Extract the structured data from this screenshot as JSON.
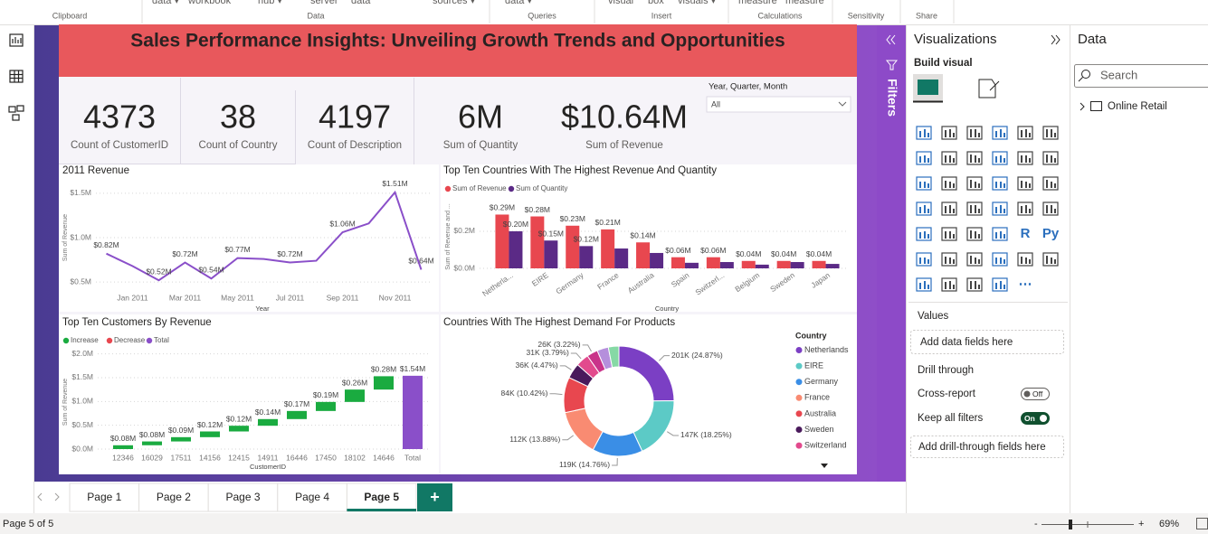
{
  "ribbon": {
    "fragments": [
      "data ▾",
      "workbook",
      "hub ▾",
      "server",
      "data",
      "sources ▾",
      "data ▾",
      "visual",
      "box",
      "visuals ▾",
      "measure",
      "measure"
    ],
    "groups": [
      "Clipboard",
      "Data",
      "Queries",
      "Insert",
      "Calculations",
      "Sensitivity",
      "Share"
    ]
  },
  "report": {
    "title": "Sales Performance Insights: Unveiling Growth Trends and Opportunities",
    "cards": [
      {
        "value": "4373",
        "label": "Count of CustomerID"
      },
      {
        "value": "38",
        "label": "Count of Country"
      },
      {
        "value": "4197",
        "label": "Count of Description"
      },
      {
        "value": "6M",
        "label": "Sum of Quantity"
      },
      {
        "value": "$10.64M",
        "label": "Sum of Revenue"
      }
    ],
    "slicer": {
      "title": "Year, Quarter, Month",
      "value": "All"
    }
  },
  "chart_data": [
    {
      "type": "line",
      "title": "2011 Revenue",
      "x_label": "Year",
      "y_label": "Sum of Revenue",
      "categories": [
        null,
        "Jan 2011",
        null,
        "Mar 2011",
        null,
        "May 2011",
        null,
        "Jul 2011",
        null,
        "Sep 2011",
        null,
        "Nov 2011",
        null
      ],
      "values": [
        0.82,
        0.68,
        0.52,
        0.72,
        0.54,
        0.77,
        0.76,
        0.72,
        0.74,
        1.06,
        1.16,
        1.51,
        0.64
      ],
      "value_labels": [
        "$0.82M",
        null,
        "$0.52M",
        "$0.72M",
        "$0.54M",
        "$0.77M",
        null,
        "$0.72M",
        null,
        "$1.06M",
        null,
        "$1.51M",
        "$0.64M"
      ],
      "color": "#8a4fc9",
      "ylim": [
        0.4,
        1.6
      ],
      "yticks": [
        {
          "value": 0.5,
          "label": "$0.5M"
        },
        {
          "value": 1.0,
          "label": "$1.0M"
        },
        {
          "value": 1.5,
          "label": "$1.5M"
        }
      ],
      "grid": true
    },
    {
      "type": "bar",
      "title": "Top Ten Countries With The Highest Revenue And Quantity",
      "x_label": "Country",
      "y_label": "Sum of Revenue and ...",
      "categories": [
        "Netherla...",
        "EIRE",
        "Germany",
        "France",
        "Australia",
        "Spain",
        "Switzerl...",
        "Belgium",
        "Sweden",
        "Japan"
      ],
      "series": [
        {
          "name": "Sum of Revenue",
          "color": "#e8474f",
          "values": [
            0.29,
            0.28,
            0.23,
            0.21,
            0.14,
            0.06,
            0.06,
            0.04,
            0.04,
            0.04
          ],
          "value_labels": [
            "$0.29M",
            "$0.28M",
            "$0.23M",
            "$0.21M",
            "$0.14M",
            "$0.06M",
            "$0.06M",
            "$0.04M",
            "$0.04M",
            "$0.04M"
          ]
        },
        {
          "name": "Sum of Quantity",
          "color": "#5b2a86",
          "values": [
            0.2,
            0.15,
            0.12,
            0.107,
            0.083,
            0.03,
            0.034,
            0.02,
            0.034,
            0.024
          ],
          "value_labels": [
            "$0.20M",
            "$0.15M",
            "$0.12M",
            null,
            null,
            null,
            null,
            null,
            null,
            null
          ]
        }
      ],
      "ylim": [
        0,
        0.38
      ],
      "yticks": [
        {
          "value": 0,
          "label": "$0.0M"
        },
        {
          "value": 0.2,
          "label": "$0.2M"
        }
      ],
      "grid": true,
      "legend": "top-left"
    },
    {
      "type": "waterfall",
      "title": "Top Ten Customers By Revenue",
      "x_label": "CustomerID",
      "y_label": "Sum of Revenue",
      "categories": [
        "12346",
        "16029",
        "17511",
        "14156",
        "12415",
        "14911",
        "16446",
        "17450",
        "18102",
        "14646",
        "Total"
      ],
      "series": [
        {
          "name": "Increase",
          "color": "#1aab40",
          "values": [
            0.08,
            0.08,
            0.09,
            0.12,
            0.12,
            0.14,
            0.17,
            0.19,
            0.26,
            0.28,
            null
          ],
          "value_labels": [
            "$0.08M",
            "$0.08M",
            "$0.09M",
            "$0.12M",
            "$0.12M",
            "$0.14M",
            "$0.17M",
            "$0.19M",
            "$0.26M",
            "$0.28M",
            null
          ]
        },
        {
          "name": "Decrease",
          "color": "#e8474f",
          "values": [
            null,
            null,
            null,
            null,
            null,
            null,
            null,
            null,
            null,
            null,
            null
          ]
        },
        {
          "name": "Total",
          "color": "#8a4fc9",
          "values": [
            null,
            null,
            null,
            null,
            null,
            null,
            null,
            null,
            null,
            null,
            1.54
          ],
          "value_labels": [
            null,
            null,
            null,
            null,
            null,
            null,
            null,
            null,
            null,
            null,
            "$1.54M"
          ]
        }
      ],
      "ylim": [
        0,
        2.05
      ],
      "yticks": [
        {
          "value": 0,
          "label": "$0.0M"
        },
        {
          "value": 0.5,
          "label": "$0.5M"
        },
        {
          "value": 1.0,
          "label": "$1.0M"
        },
        {
          "value": 1.5,
          "label": "$1.5M"
        },
        {
          "value": 2.0,
          "label": "$2.0M"
        }
      ],
      "grid": true,
      "legend": "top-left"
    },
    {
      "type": "pie",
      "title": "Countries With The Highest Demand For Products",
      "legend_title": "Country",
      "categories": [
        "Netherlands",
        "EIRE",
        "Germany",
        "France",
        "Australia",
        "Sweden",
        "Switzerland",
        null,
        null,
        null
      ],
      "values": [
        201,
        147,
        119,
        112,
        84,
        36,
        31,
        26,
        27,
        25
      ],
      "value_labels": [
        "201K (24.87%)",
        "147K (18.25%)",
        "119K (14.76%)",
        "112K (13.88%)",
        "84K (10.42%)",
        "36K (4.47%)",
        "31K (3.79%)",
        "26K (3.22%)",
        null,
        null
      ],
      "colors": [
        "#7b3fc4",
        "#5ccac6",
        "#3a8ee6",
        "#f98b72",
        "#e8474f",
        "#4a1a5c",
        "#e24a8d",
        "#c9338a",
        "#b58fdc",
        "#86d9a5"
      ],
      "legend": "right"
    }
  ],
  "filters_pane": {
    "title": "Filters"
  },
  "viz_pane": {
    "title": "Visualizations",
    "build_visual": "Build visual",
    "icon_texts": [
      "R",
      "Py",
      "⋯"
    ],
    "values_title": "Values",
    "values_placeholder": "Add data fields here",
    "drill_title": "Drill through",
    "cross_report": "Cross-report",
    "cross_report_state": "Off",
    "keep_filters": "Keep all filters",
    "keep_filters_state": "On",
    "drill_placeholder": "Add drill-through fields here"
  },
  "data_pane": {
    "title": "Data",
    "search": "Search",
    "tables": [
      "Online Retail"
    ]
  },
  "pages": {
    "tabs": [
      "Page 1",
      "Page 2",
      "Page 3",
      "Page 4",
      "Page 5"
    ],
    "active": 4,
    "add": "+"
  },
  "status": {
    "page": "Page 5 of 5",
    "zoom": "69%",
    "minus": "-",
    "plus": "+"
  }
}
